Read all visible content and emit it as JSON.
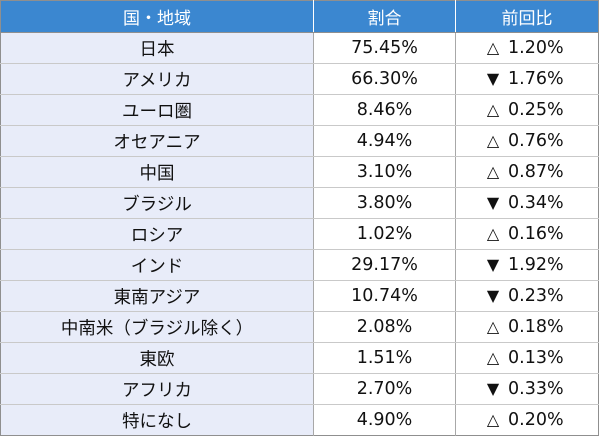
{
  "table": {
    "headers": {
      "region": "国・地域",
      "share": "割合",
      "change": "前回比"
    },
    "rows": [
      {
        "region": "日本",
        "share": "75.45%",
        "arrow": "△",
        "change": "1.20%",
        "direction": "up"
      },
      {
        "region": "アメリカ",
        "share": "66.30%",
        "arrow": "▼",
        "change": "1.76%",
        "direction": "down"
      },
      {
        "region": "ユーロ圏",
        "share": "8.46%",
        "arrow": "△",
        "change": "0.25%",
        "direction": "up"
      },
      {
        "region": "オセアニア",
        "share": "4.94%",
        "arrow": "△",
        "change": "0.76%",
        "direction": "up"
      },
      {
        "region": "中国",
        "share": "3.10%",
        "arrow": "△",
        "change": "0.87%",
        "direction": "up"
      },
      {
        "region": "ブラジル",
        "share": "3.80%",
        "arrow": "▼",
        "change": "0.34%",
        "direction": "down"
      },
      {
        "region": "ロシア",
        "share": "1.02%",
        "arrow": "△",
        "change": "0.16%",
        "direction": "up"
      },
      {
        "region": "インド",
        "share": "29.17%",
        "arrow": "▼",
        "change": "1.92%",
        "direction": "down"
      },
      {
        "region": "東南アジア",
        "share": "10.74%",
        "arrow": "▼",
        "change": "0.23%",
        "direction": "down"
      },
      {
        "region": "中南米（ブラジル除く）",
        "share": "2.08%",
        "arrow": "△",
        "change": "0.18%",
        "direction": "up"
      },
      {
        "region": "東欧",
        "share": "1.51%",
        "arrow": "△",
        "change": "0.13%",
        "direction": "up"
      },
      {
        "region": "アフリカ",
        "share": "2.70%",
        "arrow": "▼",
        "change": "0.33%",
        "direction": "down"
      },
      {
        "region": "特になし",
        "share": "4.90%",
        "arrow": "△",
        "change": "0.20%",
        "direction": "up"
      }
    ]
  },
  "colors": {
    "header_background": "#3b87d0",
    "header_text": "#ffffff",
    "region_cell_background": "#e8ecf9",
    "border": "#8f8f8f"
  }
}
